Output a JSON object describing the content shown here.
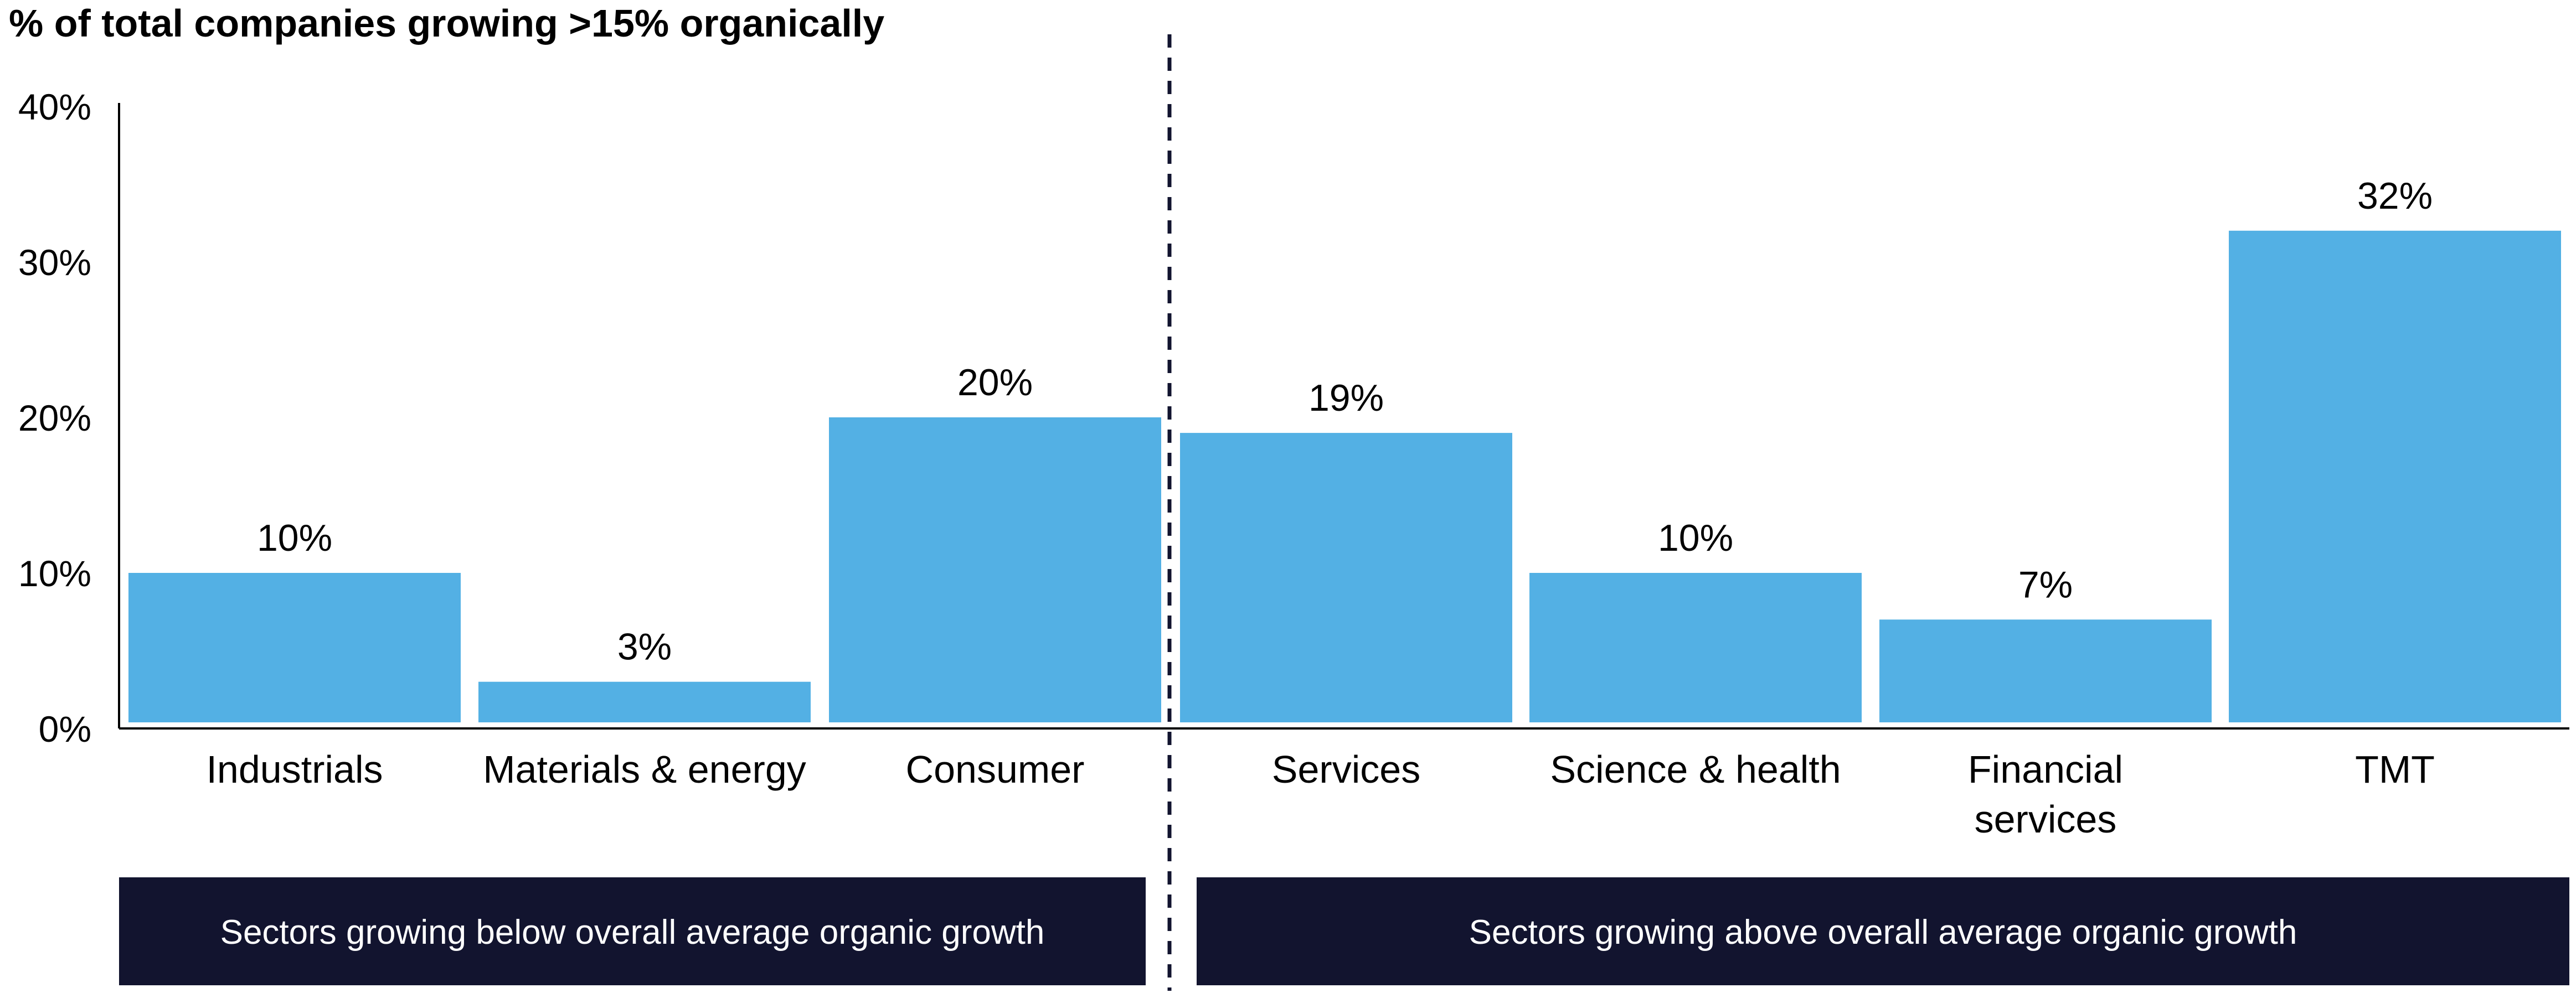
{
  "chart_data": {
    "type": "bar",
    "title": "% of total companies growing  >15% organically",
    "xlabel": "",
    "ylabel": "",
    "ylim": [
      0,
      40
    ],
    "yticks": [
      {
        "value": 0,
        "label": "0%"
      },
      {
        "value": 10,
        "label": "10%"
      },
      {
        "value": 20,
        "label": "20%"
      },
      {
        "value": 30,
        "label": "30%"
      },
      {
        "value": 40,
        "label": "40%"
      }
    ],
    "categories": [
      {
        "label": [
          "Industrials"
        ],
        "value": 10,
        "value_label": "10%"
      },
      {
        "label": [
          "Materials & energy"
        ],
        "value": 3,
        "value_label": "3%"
      },
      {
        "label": [
          "Consumer"
        ],
        "value": 20,
        "value_label": "20%"
      },
      {
        "label": [
          "Services"
        ],
        "value": 19,
        "value_label": "19%"
      },
      {
        "label": [
          "Science & health"
        ],
        "value": 10,
        "value_label": "10%"
      },
      {
        "label": [
          "Financial",
          "services"
        ],
        "value": 7,
        "value_label": "7%"
      },
      {
        "label": [
          "TMT"
        ],
        "value": 32,
        "value_label": "32%"
      }
    ],
    "groups": [
      {
        "label": "Sectors growing below overall average organic growth",
        "start": 0,
        "end": 2
      },
      {
        "label": "Sectors growing above overall average organic growth",
        "start": 3,
        "end": 6
      }
    ],
    "divider": "dashed vertical line between Consumer and Services",
    "grid": false,
    "legend": "none"
  },
  "colors": {
    "bar": "#53b0e4",
    "axis": "#000000",
    "group_box": "#12142f",
    "divider": "#12142f",
    "text": "#000000"
  }
}
